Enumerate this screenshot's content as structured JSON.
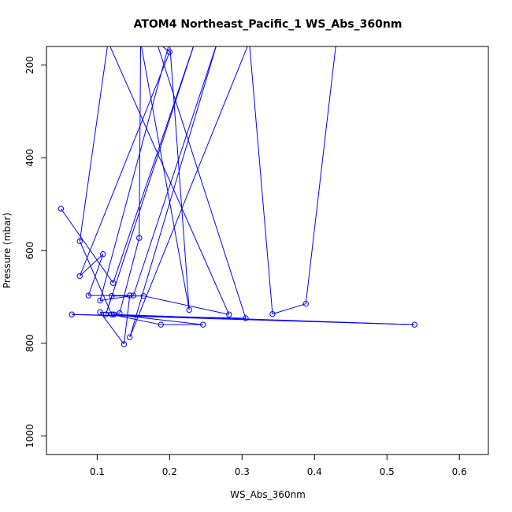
{
  "chart_data": {
    "type": "line",
    "title": "ATOM4 Northeast_Pacific_1 WS_Abs_360nm",
    "xlabel": "WS_Abs_360nm",
    "ylabel": "Pressure (mbar)",
    "xlim": [
      0.03,
      0.64
    ],
    "ylim": [
      1040,
      160
    ],
    "y_reversed": true,
    "x_ticks": [
      0.1,
      0.2,
      0.3,
      0.4,
      0.5,
      0.6
    ],
    "x_tick_labels": [
      "0.1",
      "0.2",
      "0.3",
      "0.4",
      "0.5",
      "0.6"
    ],
    "y_ticks": [
      200,
      400,
      600,
      800,
      1000
    ],
    "y_tick_labels": [
      "200",
      "400",
      "600",
      "800",
      "1000"
    ],
    "grid": false,
    "series_color": "#0000ff",
    "series": [
      {
        "marker": "open-circle",
        "points": [
          {
            "x": 0.05,
            "y": 510
          },
          {
            "x": 0.122,
            "y": 670
          },
          {
            "x": 0.235,
            "y": 150
          },
          {
            "x": 0.112,
            "y": 738
          },
          {
            "x": 0.12,
            "y": 698
          },
          {
            "x": 0.164,
            "y": 698
          },
          {
            "x": 0.282,
            "y": 738
          },
          {
            "x": 0.115,
            "y": 150
          },
          {
            "x": 0.076,
            "y": 580
          },
          {
            "x": 0.12,
            "y": 738
          },
          {
            "x": 0.188,
            "y": 760
          },
          {
            "x": 0.246,
            "y": 760
          },
          {
            "x": 0.123,
            "y": 738
          },
          {
            "x": 0.538,
            "y": 760
          },
          {
            "x": 0.065,
            "y": 738
          },
          {
            "x": 0.305,
            "y": 746
          },
          {
            "x": 0.182,
            "y": 150
          },
          {
            "x": 0.2,
            "y": 172
          },
          {
            "x": 0.076,
            "y": 655
          },
          {
            "x": 0.108,
            "y": 608
          },
          {
            "x": 0.088,
            "y": 697
          },
          {
            "x": 0.145,
            "y": 697
          },
          {
            "x": 0.137,
            "y": 802
          },
          {
            "x": 0.104,
            "y": 733
          },
          {
            "x": 0.131,
            "y": 735
          },
          {
            "x": 0.158,
            "y": 573
          },
          {
            "x": 0.16,
            "y": 150
          },
          {
            "x": 0.227,
            "y": 728
          },
          {
            "x": 0.2,
            "y": 150
          },
          {
            "x": 0.104,
            "y": 708
          },
          {
            "x": 0.15,
            "y": 697
          },
          {
            "x": 0.266,
            "y": 150
          },
          {
            "x": 0.145,
            "y": 787
          },
          {
            "x": 0.31,
            "y": 150
          },
          {
            "x": 0.342,
            "y": 737
          },
          {
            "x": 0.388,
            "y": 715
          },
          {
            "x": 0.43,
            "y": 150
          }
        ]
      }
    ]
  }
}
